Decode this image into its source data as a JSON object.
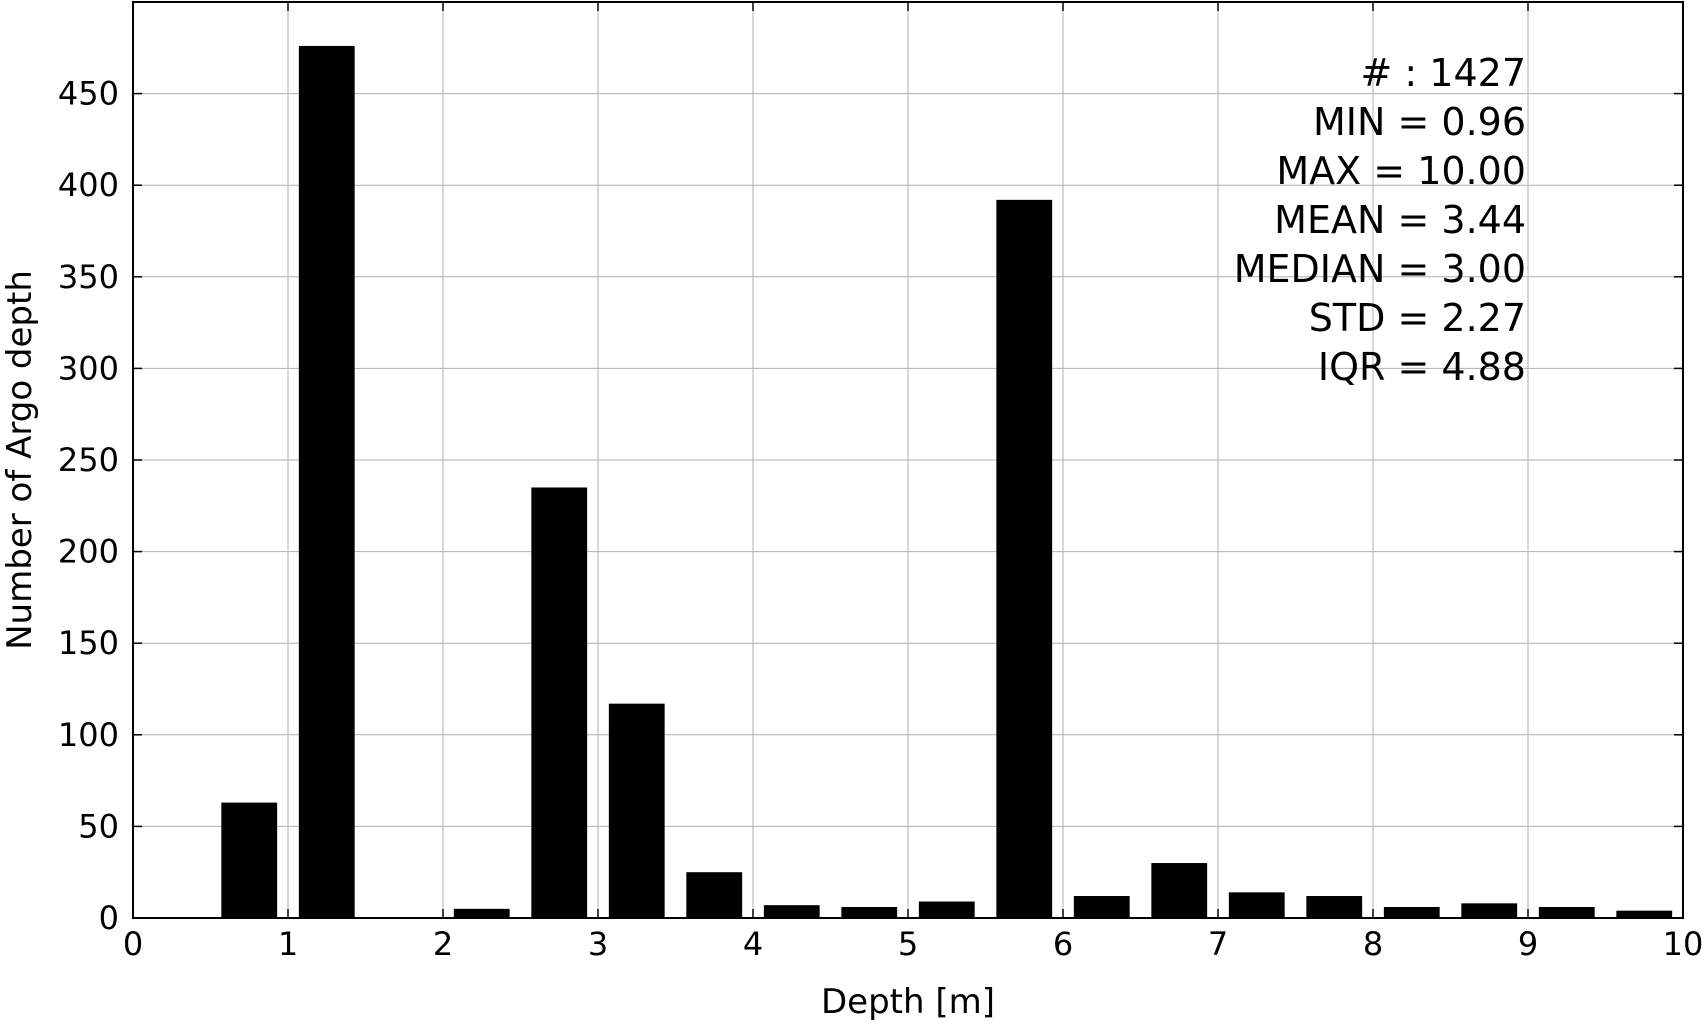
{
  "chart_data": {
    "type": "bar",
    "title": "",
    "xlabel": "Depth [m]",
    "ylabel": "Number of Argo depth",
    "xlim": [
      0,
      10
    ],
    "ylim": [
      0,
      500
    ],
    "grid": true,
    "x_ticks": [
      "0",
      "1",
      "2",
      "3",
      "4",
      "5",
      "6",
      "7",
      "8",
      "9",
      "10"
    ],
    "y_ticks": [
      "0",
      "50",
      "100",
      "150",
      "200",
      "250",
      "300",
      "350",
      "400",
      "450"
    ],
    "bins": [
      {
        "start": 0.5,
        "end": 1.0,
        "value": 63
      },
      {
        "start": 1.0,
        "end": 1.5,
        "value": 476
      },
      {
        "start": 1.5,
        "end": 2.0,
        "value": 0
      },
      {
        "start": 2.0,
        "end": 2.5,
        "value": 5
      },
      {
        "start": 2.5,
        "end": 3.0,
        "value": 235
      },
      {
        "start": 3.0,
        "end": 3.5,
        "value": 117
      },
      {
        "start": 3.5,
        "end": 4.0,
        "value": 25
      },
      {
        "start": 4.0,
        "end": 4.5,
        "value": 7
      },
      {
        "start": 4.5,
        "end": 5.0,
        "value": 6
      },
      {
        "start": 5.0,
        "end": 5.5,
        "value": 9
      },
      {
        "start": 5.5,
        "end": 6.0,
        "value": 392
      },
      {
        "start": 6.0,
        "end": 6.5,
        "value": 12
      },
      {
        "start": 6.5,
        "end": 7.0,
        "value": 30
      },
      {
        "start": 7.0,
        "end": 7.5,
        "value": 14
      },
      {
        "start": 7.5,
        "end": 8.0,
        "value": 12
      },
      {
        "start": 8.0,
        "end": 8.5,
        "value": 6
      },
      {
        "start": 8.5,
        "end": 9.0,
        "value": 8
      },
      {
        "start": 9.0,
        "end": 9.5,
        "value": 6
      },
      {
        "start": 9.5,
        "end": 10.0,
        "value": 4
      }
    ],
    "bar_color": "#000000",
    "annotations": [
      "# : 1427",
      "MIN = 0.96",
      "MAX =  10.00",
      "MEAN = 3.44",
      "MEDIAN = 3.00",
      "STD = 2.27",
      "IQR = 4.88"
    ]
  }
}
